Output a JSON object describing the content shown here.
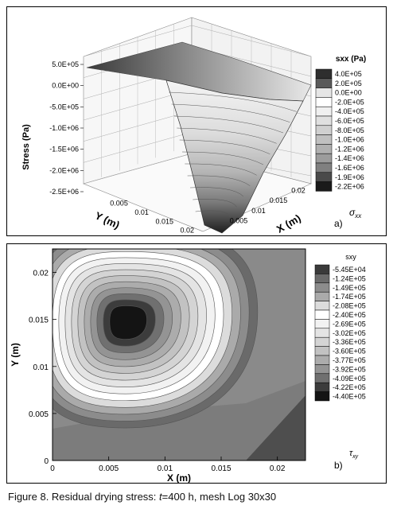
{
  "chart_data": [
    {
      "type": "surface3d",
      "panel_label": "a)",
      "symbol": "σ",
      "symbol_sub": "xx",
      "zlabel": "Stress (Pa)",
      "xlabel": "X (m)",
      "ylabel": "Y (m)",
      "zticks": [
        "5.0E+05",
        "0.0E+00",
        "-5.0E+05",
        "-1.0E+06",
        "-1.5E+06",
        "-2.0E+06",
        "-2.5E+06"
      ],
      "xticks": [
        "0.005",
        "0.01",
        "0.015",
        "0.02"
      ],
      "yticks": [
        "0.005",
        "0.01",
        "0.015",
        "0.02"
      ],
      "legend_title": "sxx (Pa)",
      "legend_levels": [
        "4.0E+05",
        "2.0E+05",
        "0.0E+00",
        "-2.0E+05",
        "-4.0E+05",
        "-6.0E+05",
        "-8.0E+05",
        "-1.0E+06",
        "-1.2E+06",
        "-1.4E+06",
        "-1.6E+06",
        "-1.9E+06",
        "-2.2E+06"
      ],
      "legend_colors": [
        "#2e2e2e",
        "#5a5a5a",
        "#e6e6e6",
        "#ffffff",
        "#f0f0f0",
        "#e0e0e0",
        "#d0d0d0",
        "#c0c0c0",
        "#b0b0b0",
        "#9c9c9c",
        "#808080",
        "#4a4a4a",
        "#1a1a1a"
      ]
    },
    {
      "type": "contour",
      "panel_label": "b)",
      "symbol": "τ",
      "symbol_sub": "xy",
      "xlabel": "X (m)",
      "ylabel": "Y (m)",
      "xticks": [
        "0",
        "0.005",
        "0.01",
        "0.015",
        "0.02"
      ],
      "yticks": [
        "0",
        "0.005",
        "0.01",
        "0.015",
        "0.02"
      ],
      "xlim": [
        0,
        0.0225
      ],
      "ylim": [
        0,
        0.0225
      ],
      "min_location": {
        "x": 0.0065,
        "y": 0.0148
      },
      "legend_title": "sxy",
      "legend_levels": [
        "-5.45E+04",
        "-1.24E+05",
        "-1.49E+05",
        "-1.74E+05",
        "-2.08E+05",
        "-2.40E+05",
        "-2.69E+05",
        "-3.02E+05",
        "-3.36E+05",
        "-3.60E+05",
        "-3.77E+05",
        "-3.92E+05",
        "-4.09E+05",
        "-4.22E+05",
        "-4.40E+05"
      ],
      "legend_colors": [
        "#3a3a3a",
        "#6a6a6a",
        "#8c8c8c",
        "#aaaaaa",
        "#dcdcdc",
        "#ffffff",
        "#f2f2f2",
        "#e4e4e4",
        "#d4d4d4",
        "#c2c2c2",
        "#acacac",
        "#949494",
        "#707070",
        "#3c3c3c",
        "#141414"
      ]
    }
  ],
  "caption": {
    "prefix": "Figure 8. Residual drying stress: ",
    "t_var": "t",
    "suffix": "=400 h, mesh Log 30x30"
  }
}
